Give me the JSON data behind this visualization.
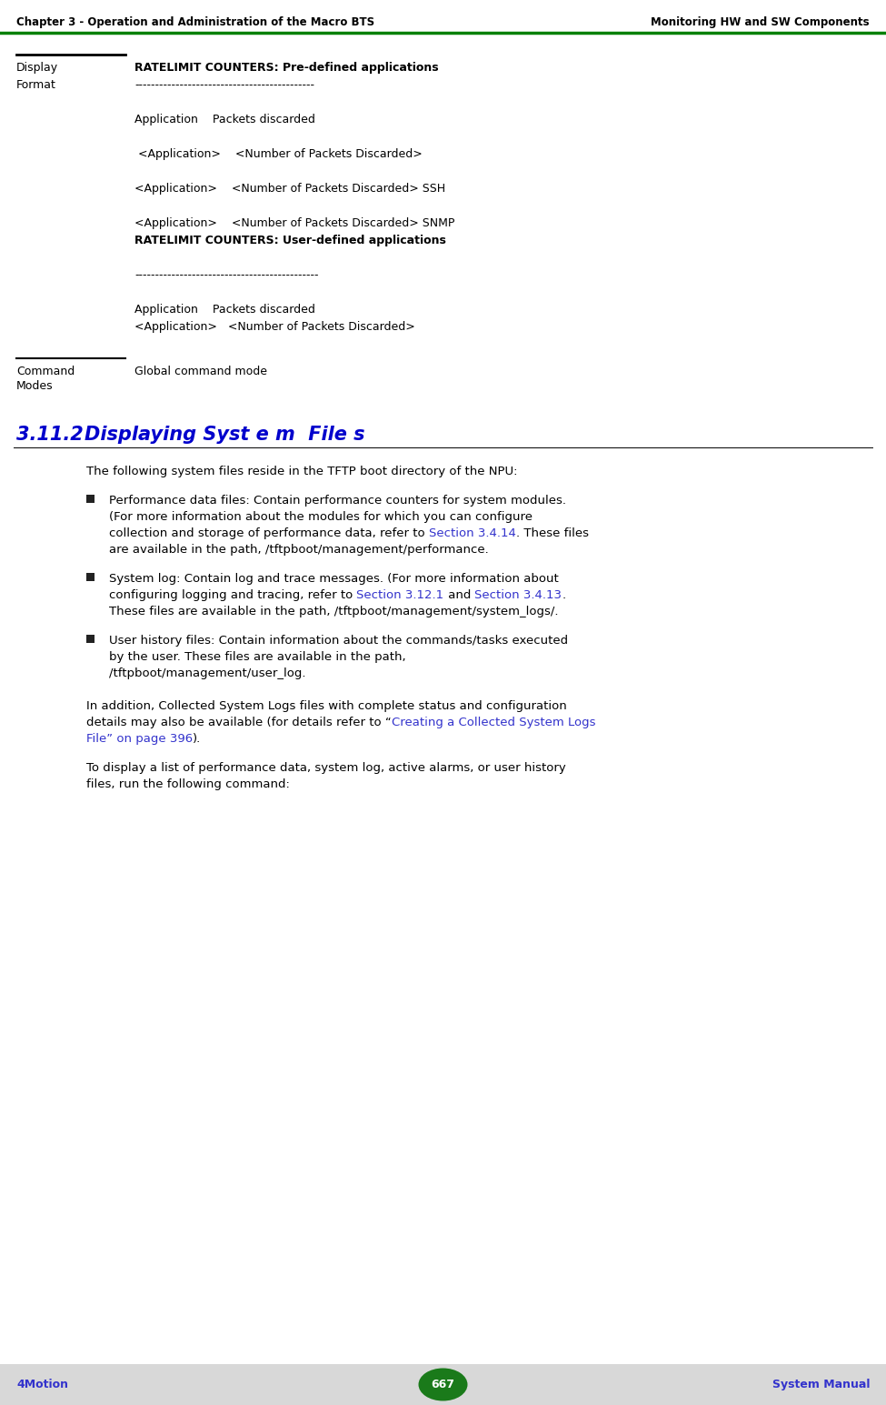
{
  "header_left": "Chapter 3 - Operation and Administration of the Macro BTS",
  "header_right": "Monitoring HW and SW Components",
  "header_line_color": "#008000",
  "bg_color": "#ffffff",
  "footer_left": "4Motion",
  "footer_center": "667",
  "footer_right": "System Manual",
  "footer_badge_color": "#1a7a1a",
  "footer_text_color": "#3333cc",
  "footer_bg": "#d8d8d8",
  "section_number": "3.11.2",
  "section_title_text": "Displaying Syst e m  File s",
  "section_title_color": "#0000cc",
  "label_display1": "Display",
  "label_display2": "Format",
  "label_cmd1": "Command",
  "label_cmd2": "Modes",
  "display_format_lines": [
    [
      "bold",
      "RATELIMIT COUNTERS: Pre-defined applications"
    ],
    [
      "normal",
      "--------------------------------------------"
    ],
    [
      "normal",
      ""
    ],
    [
      "normal",
      "Application    Packets discarded"
    ],
    [
      "normal",
      ""
    ],
    [
      "normal",
      " <Application>    <Number of Packets Discarded>"
    ],
    [
      "normal",
      ""
    ],
    [
      "normal",
      "<Application>    <Number of Packets Discarded> SSH"
    ],
    [
      "normal",
      ""
    ],
    [
      "normal",
      "<Application>    <Number of Packets Discarded> SNMP"
    ],
    [
      "bold",
      "RATELIMIT COUNTERS: User-defined applications"
    ],
    [
      "normal",
      ""
    ],
    [
      "normal",
      "---------------------------------------------"
    ],
    [
      "normal",
      ""
    ],
    [
      "normal",
      "Application    Packets discarded"
    ],
    [
      "normal",
      "<Application>   <Number of Packets Discarded>"
    ]
  ],
  "cmd_mode_value": "Global command mode",
  "body_intro": "The following system files reside in the TFTP boot directory of the NPU:",
  "link_color": "#3333cc",
  "bullet_color": "#222222",
  "paragraph2_link_color": "#3333cc"
}
